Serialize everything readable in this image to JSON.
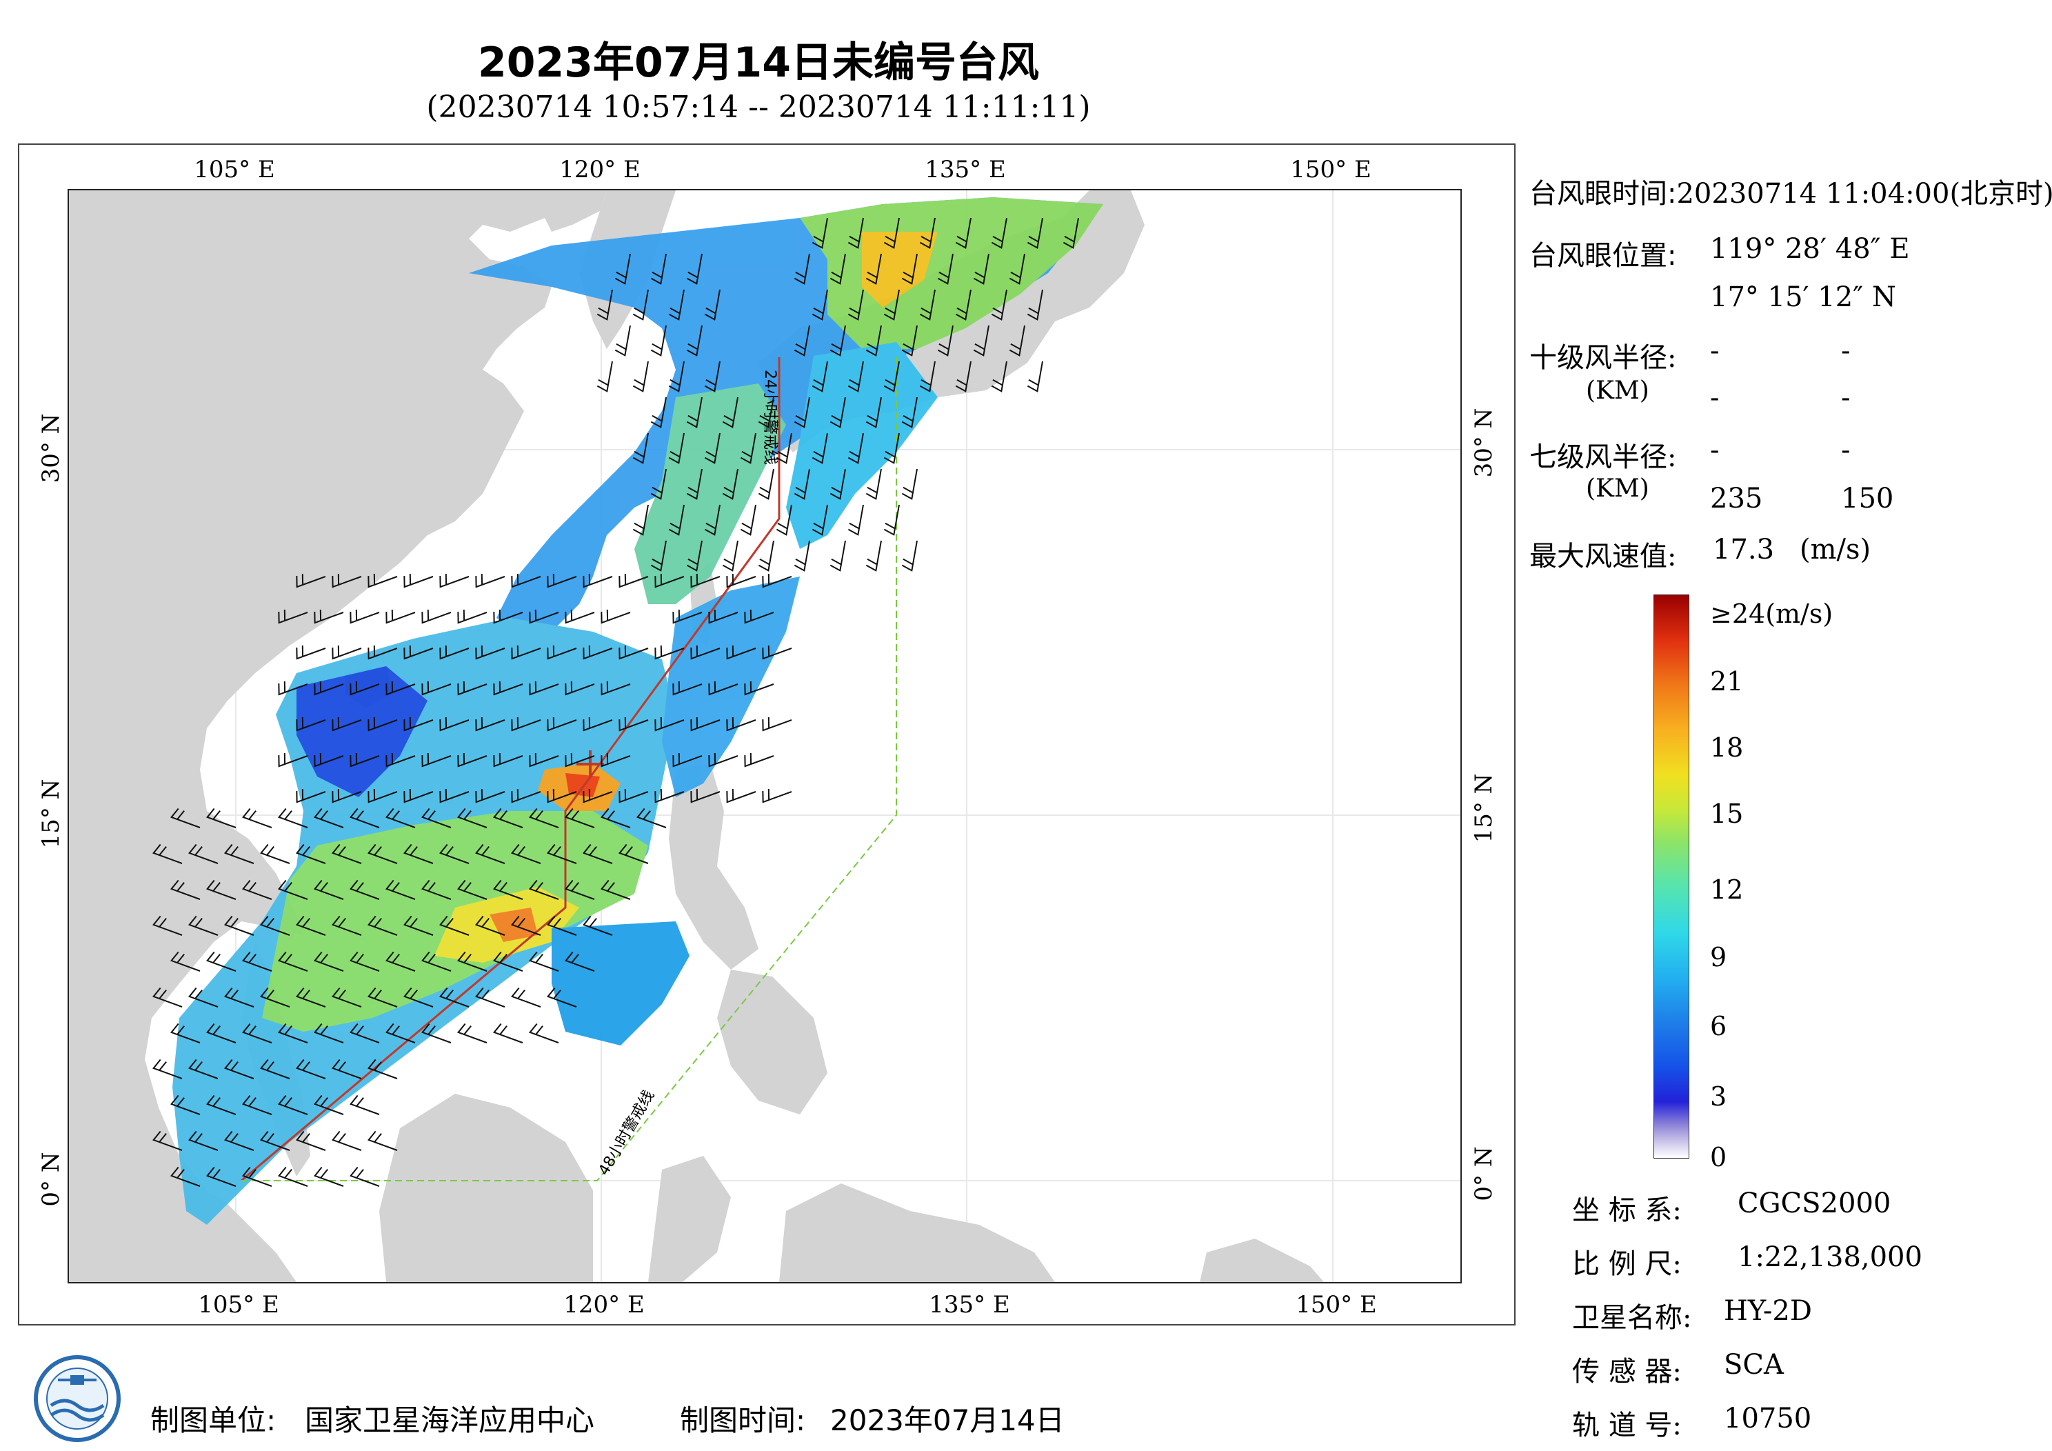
{
  "title": "2023年07月14日未编号台风",
  "subtitle": "(20230714 10:57:14 -- 20230714 11:11:11)",
  "axes": {
    "top_lon": [
      "105° E",
      "120° E",
      "135° E",
      "150° E"
    ],
    "bottom_lon": [
      "105° E",
      "120° E",
      "135° E",
      "150° E"
    ],
    "left_lat": [
      "30° N",
      "15° N",
      "0° N"
    ],
    "right_lat": [
      "30° N",
      "15° N",
      "0° N"
    ]
  },
  "map": {
    "lon_range": [
      98,
      155
    ],
    "lat_range": [
      -4,
      41
    ],
    "warning_line_24h": "24小时警戒线",
    "warning_line_48h": "48小时警戒线",
    "land_color": "#d3d3d3",
    "ocean_color": "#ffffff",
    "warning_24h_color": "#c0392b",
    "warning_48h_color": "#7ac943"
  },
  "info": {
    "eye_time_label": "台风眼时间:",
    "eye_time_value": "20230714 11:04:00(北京时)",
    "eye_pos_label": "台风眼位置:",
    "eye_lon": "119° 28′ 48″ E",
    "eye_lat": "17° 15′ 12″ N",
    "r10_label": "十级风半径:",
    "r10_unit": "(KM)",
    "r10_values": [
      "-",
      "-",
      "-",
      "-"
    ],
    "r7_label": "七级风半径:",
    "r7_unit": "(KM)",
    "r7_values": [
      "-",
      "-",
      "235",
      "150"
    ],
    "max_wind_label": "最大风速值:",
    "max_wind_value": "17.3",
    "max_wind_unit": "(m/s)"
  },
  "colorbar": {
    "labels": [
      "≥24(m/s)",
      "21",
      "18",
      "15",
      "12",
      "9",
      "6",
      "3",
      "0"
    ]
  },
  "meta": {
    "crs_label": "坐 标 系:",
    "crs_value": "CGCS2000",
    "scale_label": "比 例 尺:",
    "scale_value": "1:22,138,000",
    "satellite_label": "卫星名称:",
    "satellite_value": "HY-2D",
    "sensor_label": "传 感 器:",
    "sensor_value": "SCA",
    "orbit_label": "轨 道 号:",
    "orbit_value": "10750"
  },
  "footer": {
    "unit_label": "制图单位:",
    "unit_value": "国家卫星海洋应用中心",
    "time_label": "制图时间:",
    "time_value": "2023年07月14日"
  }
}
